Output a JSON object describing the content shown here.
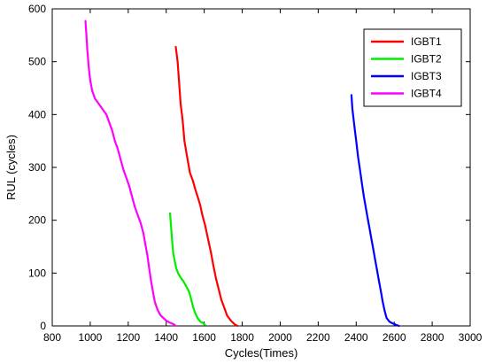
{
  "chart_data": {
    "type": "line",
    "xlabel": "Cycles(Times)",
    "ylabel": "RUL (cycles)",
    "xlim": [
      800,
      3000
    ],
    "ylim": [
      0,
      600
    ],
    "xticks": [
      800,
      1000,
      1200,
      1400,
      1600,
      1800,
      2000,
      2200,
      2400,
      2600,
      2800,
      3000
    ],
    "yticks": [
      0,
      100,
      200,
      300,
      400,
      500,
      600
    ],
    "xtick_labels": [
      "800",
      "1000",
      "1200",
      "1400",
      "1600",
      "1800",
      "2000",
      "2200",
      "2400",
      "2600",
      "2800",
      "3000"
    ],
    "ytick_labels": [
      "0",
      "100",
      "200",
      "300",
      "400",
      "500",
      "600"
    ],
    "grid": false,
    "legend_position": "top-right",
    "series": [
      {
        "name": "IGBT1",
        "color": "#ff0000",
        "x": [
          1450,
          1460,
          1468,
          1476,
          1486,
          1496,
          1510,
          1525,
          1540,
          1552,
          1565,
          1578,
          1590,
          1605,
          1620,
          1635,
          1648,
          1662,
          1676,
          1690,
          1705,
          1720,
          1740,
          1760,
          1775
        ],
        "y": [
          528,
          500,
          460,
          420,
          390,
          350,
          320,
          290,
          275,
          260,
          245,
          230,
          210,
          190,
          165,
          140,
          115,
          90,
          70,
          50,
          35,
          20,
          10,
          3,
          0
        ]
      },
      {
        "name": "IGBT2",
        "color": "#00ee00",
        "x": [
          1420,
          1425,
          1430,
          1436,
          1443,
          1452,
          1462,
          1475,
          1490,
          1505,
          1520,
          1532,
          1542,
          1552,
          1565,
          1580,
          1595,
          1605
        ],
        "y": [
          213,
          190,
          165,
          140,
          125,
          110,
          100,
          92,
          85,
          75,
          65,
          50,
          35,
          25,
          15,
          8,
          5,
          2
        ]
      },
      {
        "name": "IGBT3",
        "color": "#0000ff",
        "x": [
          2375,
          2380,
          2390,
          2400,
          2410,
          2420,
          2430,
          2440,
          2450,
          2460,
          2470,
          2480,
          2490,
          2500,
          2510,
          2520,
          2530,
          2540,
          2550,
          2560,
          2575,
          2590,
          2610,
          2625
        ],
        "y": [
          437,
          410,
          380,
          350,
          320,
          295,
          270,
          245,
          225,
          205,
          185,
          165,
          145,
          125,
          105,
          85,
          65,
          45,
          28,
          15,
          8,
          5,
          2,
          0
        ]
      },
      {
        "name": "IGBT4",
        "color": "#ff00ff",
        "x": [
          975,
          980,
          985,
          992,
          1000,
          1010,
          1025,
          1045,
          1065,
          1085,
          1100,
          1115,
          1130,
          1145,
          1160,
          1175,
          1190,
          1205,
          1220,
          1235,
          1250,
          1265,
          1280,
          1290,
          1300,
          1310,
          1320,
          1330,
          1340,
          1355,
          1370,
          1385,
          1400,
          1420,
          1440,
          1450
        ],
        "y": [
          577,
          550,
          520,
          490,
          465,
          445,
          430,
          420,
          410,
          400,
          385,
          370,
          350,
          335,
          315,
          295,
          280,
          265,
          245,
          225,
          210,
          195,
          175,
          155,
          135,
          110,
          85,
          65,
          45,
          30,
          20,
          15,
          10,
          6,
          3,
          0
        ]
      }
    ]
  }
}
